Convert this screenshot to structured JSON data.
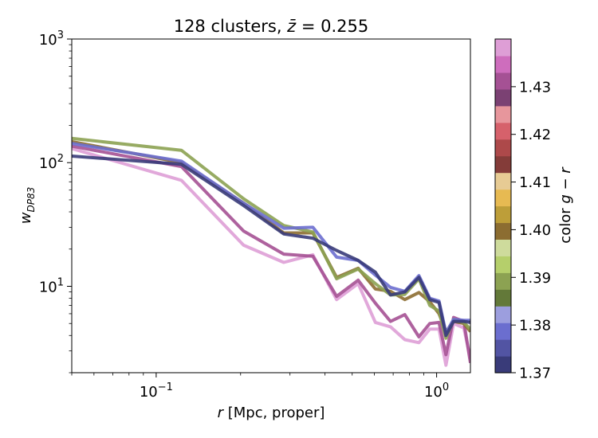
{
  "chart_data": {
    "type": "line",
    "title": "128 clusters, $\\bar{z} = 0.255$",
    "title_parts": {
      "lead": "128 clusters, ",
      "var": "z̄",
      "tail": " = 0.255"
    },
    "xlabel": {
      "var": "r",
      "rest": " [Mpc, proper]"
    },
    "ylabel": {
      "var": "w",
      "sub": "DP83"
    },
    "xscale": "log",
    "yscale": "log",
    "xlim": [
      0.05,
      1.32
    ],
    "ylim": [
      2.0,
      1000
    ],
    "x_ticks": [
      {
        "value": 0.1,
        "base": "10",
        "exp": "−1"
      },
      {
        "value": 1.0,
        "base": "10",
        "exp": "0"
      }
    ],
    "y_ticks": [
      {
        "value": 10,
        "base": "10",
        "exp": "1"
      },
      {
        "value": 100,
        "base": "10",
        "exp": "2"
      },
      {
        "value": 1000,
        "base": "10",
        "exp": "3"
      }
    ],
    "grid": false,
    "colorbar": {
      "label_prefix": "color ",
      "label_var": "g − r",
      "range": [
        1.37,
        1.44
      ],
      "ticks": [
        "1.37",
        "1.38",
        "1.39",
        "1.40",
        "1.41",
        "1.42",
        "1.43"
      ],
      "tick_values": [
        1.37,
        1.38,
        1.39,
        1.4,
        1.41,
        1.42,
        1.43
      ],
      "colors": [
        "#393b79",
        "#5254a3",
        "#6b6ecf",
        "#9c9ede",
        "#637939",
        "#8ca252",
        "#b5cf6b",
        "#cedb9c",
        "#8c6d31",
        "#bd9e39",
        "#e7ba52",
        "#e7cb94",
        "#843c39",
        "#ad494a",
        "#d6616b",
        "#e7969c",
        "#7b4173",
        "#a55194",
        "#ce6dbd",
        "#de9ed6"
      ]
    },
    "series": [
      {
        "color": "#de9ed6",
        "x": [
          0.05,
          0.123,
          0.205,
          0.285,
          0.362,
          0.44,
          0.525,
          0.605,
          0.685,
          0.77,
          0.865,
          0.945,
          1.02,
          1.08,
          1.15,
          1.25,
          1.32
        ],
        "y": [
          130,
          72,
          21.5,
          15.6,
          18,
          7.8,
          10.5,
          5.1,
          4.7,
          3.7,
          3.5,
          4.5,
          4.5,
          2.3,
          5.0,
          4.6,
          2.6
        ]
      },
      {
        "color": "#a55194",
        "x": [
          0.05,
          0.123,
          0.205,
          0.285,
          0.362,
          0.44,
          0.525,
          0.605,
          0.685,
          0.77,
          0.865,
          0.945,
          1.02,
          1.08,
          1.15,
          1.25,
          1.32
        ],
        "y": [
          136,
          93,
          28,
          18.2,
          17.5,
          8.3,
          11.2,
          7.3,
          5.2,
          5.9,
          3.9,
          5.0,
          5.1,
          2.8,
          5.6,
          5.2,
          2.4
        ]
      },
      {
        "color": "#8c6d31",
        "x": [
          0.05,
          0.123,
          0.205,
          0.285,
          0.362,
          0.44,
          0.525,
          0.605,
          0.685,
          0.77,
          0.865,
          0.945,
          1.02,
          1.08,
          1.15,
          1.25,
          1.32
        ],
        "y": [
          148,
          100,
          47,
          27,
          27,
          11.8,
          14,
          9.5,
          9.1,
          7.8,
          8.9,
          7.5,
          6.0,
          4.3,
          5.2,
          5.0,
          4.3
        ]
      },
      {
        "color": "#8ca252",
        "x": [
          0.05,
          0.123,
          0.205,
          0.285,
          0.362,
          0.44,
          0.525,
          0.605,
          0.685,
          0.77,
          0.865,
          0.945,
          1.02,
          1.08,
          1.15,
          1.25,
          1.32
        ],
        "y": [
          157,
          126,
          51,
          31,
          27.5,
          11.5,
          13.8,
          10.5,
          8.5,
          8.6,
          11.5,
          7.0,
          6.3,
          3.8,
          5.4,
          5.1,
          4.5
        ]
      },
      {
        "color": "#6b6ecf",
        "x": [
          0.05,
          0.123,
          0.205,
          0.285,
          0.362,
          0.44,
          0.525,
          0.605,
          0.685,
          0.77,
          0.865,
          0.945,
          1.02,
          1.08,
          1.15,
          1.25,
          1.32
        ],
        "y": [
          143,
          103,
          47,
          29.5,
          30,
          17.2,
          16.2,
          12.3,
          9.8,
          9.1,
          12.2,
          8.0,
          7.6,
          4.2,
          5.4,
          5.3,
          5.3
        ]
      },
      {
        "color": "#393b79",
        "x": [
          0.05,
          0.123,
          0.205,
          0.285,
          0.362,
          0.44,
          0.525,
          0.605,
          0.685,
          0.77,
          0.865,
          0.945,
          1.02,
          1.08,
          1.15,
          1.25,
          1.32
        ],
        "y": [
          113,
          97,
          45,
          26.5,
          24.5,
          19.5,
          16.2,
          13.0,
          8.5,
          9.0,
          11.8,
          7.8,
          7.4,
          4.0,
          5.2,
          5.2,
          5.1
        ]
      }
    ]
  }
}
